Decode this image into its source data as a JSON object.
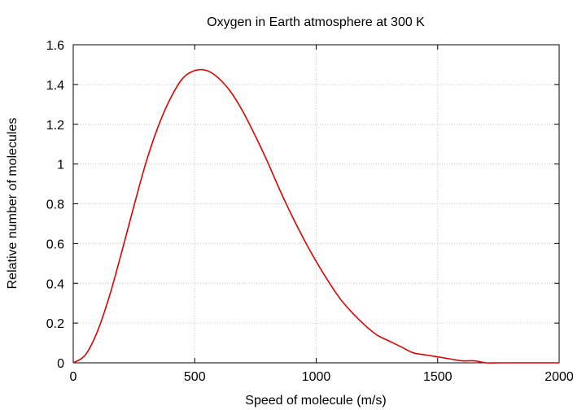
{
  "chart_data": {
    "type": "line",
    "title": "Oxygen in Earth atmosphere at 300 K",
    "xlabel": "Speed of molecule (m/s)",
    "ylabel": "Relative number of molecules",
    "xlim": [
      0,
      2000
    ],
    "ylim": [
      0,
      1.6
    ],
    "xticks": [
      0,
      500,
      1000,
      1500,
      2000
    ],
    "yticks": [
      0,
      0.2,
      0.4,
      0.6,
      0.8,
      1,
      1.2,
      1.4,
      1.6
    ],
    "xtick_labels": [
      "0",
      "500",
      "1000",
      "1500",
      "2000"
    ],
    "ytick_labels": [
      "0",
      "0.2",
      "0.4",
      "0.6",
      "0.8",
      "1",
      "1.2",
      "1.4",
      "1.6"
    ],
    "grid": true,
    "line_color": "#e00000",
    "series": [
      {
        "x": [
          0,
          50,
          100,
          150,
          200,
          250,
          300,
          350,
          400,
          450,
          500,
          550,
          600,
          650,
          700,
          750,
          800,
          850,
          900,
          950,
          1000,
          1050,
          1100,
          1150,
          1200,
          1250,
          1300,
          1350,
          1400,
          1450,
          1500,
          1550,
          1600,
          1650,
          1700,
          1750,
          1800,
          1850,
          1900,
          1950,
          2000
        ],
        "y": [
          0,
          0.04,
          0.16,
          0.34,
          0.56,
          0.79,
          1.01,
          1.19,
          1.33,
          1.43,
          1.47,
          1.47,
          1.43,
          1.36,
          1.26,
          1.14,
          1.01,
          0.87,
          0.74,
          0.62,
          0.51,
          0.41,
          0.32,
          0.25,
          0.19,
          0.14,
          0.11,
          0.08,
          0.05,
          0.04,
          0.03,
          0.02,
          0.01,
          0.01,
          0.0,
          0.0,
          0.0,
          0.0,
          0.0,
          0.0,
          0.0
        ]
      }
    ]
  }
}
